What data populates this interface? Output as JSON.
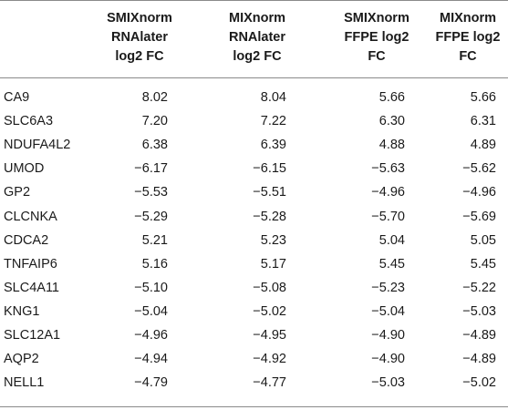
{
  "headers": [
    [
      "SMIXnorm",
      "RNAlater",
      "log2 FC"
    ],
    [
      "MIXnorm",
      "RNAlater",
      "log2 FC"
    ],
    [
      "SMIXnorm",
      "FFPE log2",
      "FC"
    ],
    [
      "MIXnorm",
      "FFPE log2",
      "FC"
    ]
  ],
  "rows": [
    {
      "gene": "CA9",
      "v": [
        "8.02",
        "8.04",
        "5.66",
        "5.66"
      ]
    },
    {
      "gene": "SLC6A3",
      "v": [
        "7.20",
        "7.22",
        "6.30",
        "6.31"
      ]
    },
    {
      "gene": "NDUFA4L2",
      "v": [
        "6.38",
        "6.39",
        "4.88",
        "4.89"
      ]
    },
    {
      "gene": "UMOD",
      "v": [
        "−6.17",
        "−6.15",
        "−5.63",
        "−5.62"
      ]
    },
    {
      "gene": "GP2",
      "v": [
        "−5.53",
        "−5.51",
        "−4.96",
        "−4.96"
      ]
    },
    {
      "gene": "CLCNKA",
      "v": [
        "−5.29",
        "−5.28",
        "−5.70",
        "−5.69"
      ]
    },
    {
      "gene": "CDCA2",
      "v": [
        "5.21",
        "5.23",
        "5.04",
        "5.05"
      ]
    },
    {
      "gene": "TNFAIP6",
      "v": [
        "5.16",
        "5.17",
        "5.45",
        "5.45"
      ]
    },
    {
      "gene": "SLC4A11",
      "v": [
        "−5.10",
        "−5.08",
        "−5.23",
        "−5.22"
      ]
    },
    {
      "gene": "KNG1",
      "v": [
        "−5.04",
        "−5.02",
        "−5.04",
        "−5.03"
      ]
    },
    {
      "gene": "SLC12A1",
      "v": [
        "−4.96",
        "−4.95",
        "−4.90",
        "−4.89"
      ]
    },
    {
      "gene": "AQP2",
      "v": [
        "−4.94",
        "−4.92",
        "−4.90",
        "−4.89"
      ]
    },
    {
      "gene": "NELL1",
      "v": [
        "−4.79",
        "−4.77",
        "−5.03",
        "−5.02"
      ]
    }
  ]
}
